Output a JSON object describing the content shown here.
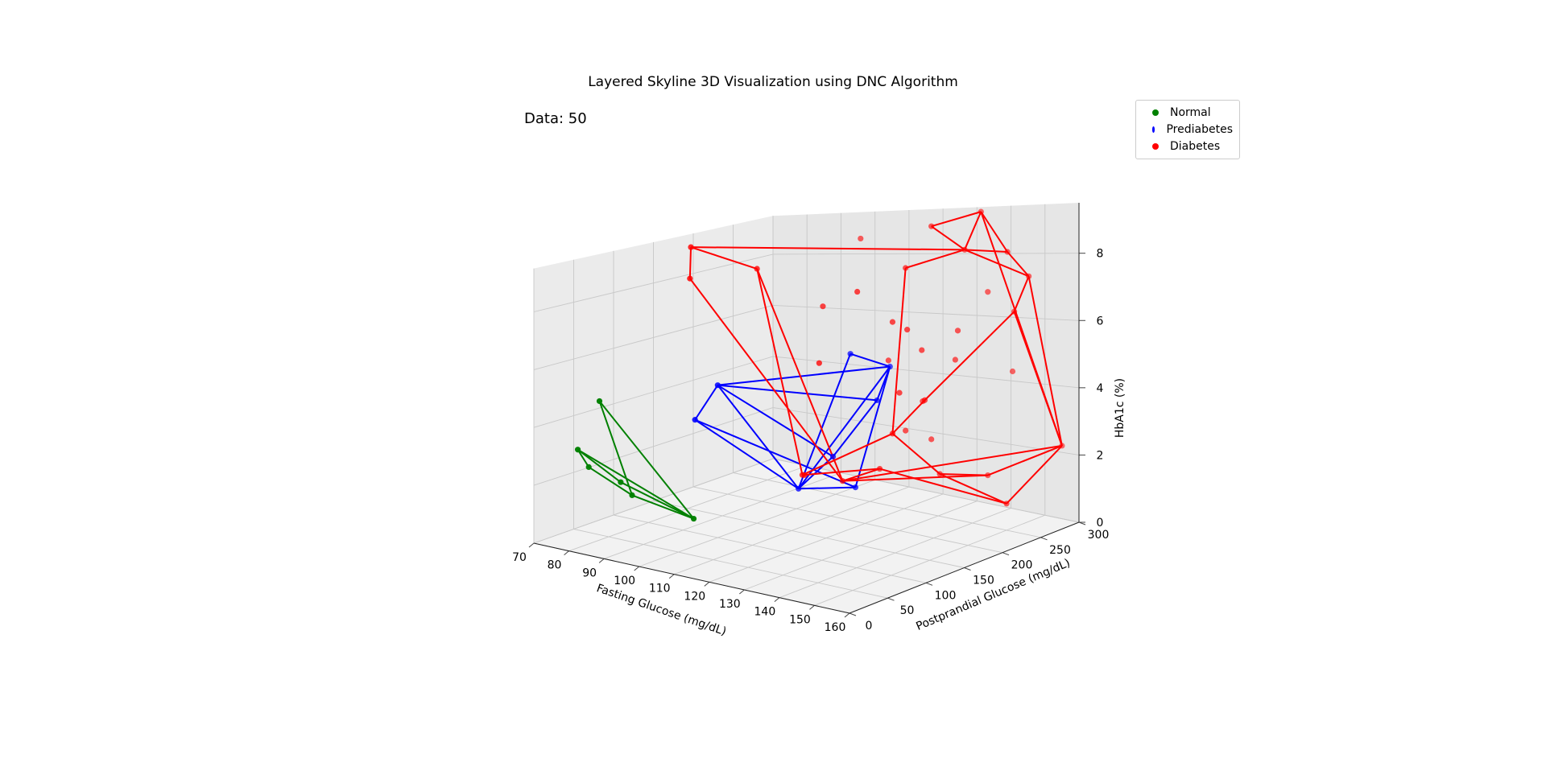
{
  "chart_data": {
    "type": "scatter",
    "title": "Layered Skyline 3D Visualization using DNC Algorithm",
    "annotation": "Data: 50",
    "xlabel": "Fasting Glucose (mg/dL)",
    "ylabel": "Postprandial Glucose (mg/dL)",
    "zlabel": "HbA1c (%)",
    "xlim": [
      70,
      160
    ],
    "ylim": [
      0,
      300
    ],
    "zlim": [
      0,
      9.5
    ],
    "xticks": [
      70,
      80,
      90,
      100,
      110,
      120,
      130,
      140,
      150,
      160
    ],
    "yticks": [
      0,
      50,
      100,
      150,
      200,
      250,
      300
    ],
    "zticks": [
      0,
      2,
      4,
      6,
      8
    ],
    "grid": true,
    "legend_position": "top-right",
    "colors": {
      "Normal": "#008000",
      "Prediabetes": "#0000ff",
      "Diabetes": "#ff0000"
    },
    "series": [
      {
        "name": "Normal",
        "color": "#008000",
        "points": [
          [
            78,
            20,
            3.2
          ],
          [
            80,
            25,
            2.6
          ],
          [
            88,
            30,
            2.2
          ],
          [
            89,
            40,
            1.7
          ],
          [
            86,
            12,
            5.0
          ],
          [
            110,
            25,
            1.5
          ]
        ],
        "skyline_edges": [
          [
            0,
            1
          ],
          [
            0,
            2
          ],
          [
            0,
            5
          ],
          [
            1,
            3
          ],
          [
            2,
            5
          ],
          [
            3,
            5
          ],
          [
            4,
            3
          ],
          [
            4,
            5
          ]
        ]
      },
      {
        "name": "Prediabetes",
        "color": "#0000ff",
        "points": [
          [
            100,
            100,
            5.0
          ],
          [
            98,
            80,
            4.0
          ],
          [
            112,
            150,
            1.4
          ],
          [
            124,
            170,
            1.5
          ],
          [
            118,
            190,
            5.5
          ],
          [
            128,
            180,
            4.2
          ],
          [
            125,
            210,
            5.0
          ],
          [
            122,
            150,
            2.6
          ]
        ],
        "skyline_edges": [
          [
            0,
            1
          ],
          [
            0,
            2
          ],
          [
            0,
            5
          ],
          [
            0,
            6
          ],
          [
            0,
            7
          ],
          [
            1,
            2
          ],
          [
            1,
            3
          ],
          [
            2,
            3
          ],
          [
            2,
            4
          ],
          [
            2,
            6
          ],
          [
            2,
            7
          ],
          [
            3,
            6
          ],
          [
            4,
            6
          ],
          [
            5,
            6
          ],
          [
            5,
            7
          ]
        ]
      },
      {
        "name": "Diabetes",
        "color": "#ff0000",
        "points": [
          [
            90,
            110,
            9.5
          ],
          [
            92,
            100,
            8.5
          ],
          [
            100,
            150,
            8.5
          ],
          [
            118,
            180,
            1.5
          ],
          [
            112,
            155,
            1.8
          ],
          [
            122,
            210,
            1.7
          ],
          [
            125,
            230,
            8.0
          ],
          [
            140,
            240,
            8.5
          ],
          [
            128,
            250,
            9.2
          ],
          [
            138,
            270,
            9.5
          ],
          [
            148,
            260,
            8.3
          ],
          [
            152,
            270,
            7.5
          ],
          [
            150,
            260,
            6.5
          ],
          [
            155,
            300,
            2.2
          ],
          [
            140,
            270,
            1.3
          ],
          [
            150,
            250,
            0.8
          ],
          [
            135,
            230,
            1.6
          ],
          [
            128,
            200,
            3.0
          ],
          [
            134,
            215,
            4.0
          ],
          [
            105,
            260,
            8.8
          ],
          [
            110,
            190,
            7.0
          ],
          [
            120,
            190,
            7.5
          ],
          [
            130,
            210,
            6.2
          ],
          [
            128,
            200,
            6.5
          ],
          [
            132,
            220,
            5.5
          ],
          [
            138,
            240,
            6.0
          ],
          [
            140,
            270,
            7.0
          ],
          [
            145,
            280,
            4.5
          ],
          [
            135,
            250,
            5.0
          ],
          [
            130,
            230,
            3.8
          ],
          [
            125,
            230,
            2.8
          ],
          [
            128,
            250,
            2.4
          ],
          [
            130,
            200,
            4.3
          ],
          [
            120,
            230,
            5.0
          ],
          [
            116,
            140,
            2.0
          ],
          [
            118,
            150,
            5.5
          ]
        ],
        "skyline_edges": [
          [
            0,
            1
          ],
          [
            0,
            2
          ],
          [
            0,
            7
          ],
          [
            1,
            3
          ],
          [
            2,
            3
          ],
          [
            2,
            4
          ],
          [
            3,
            5
          ],
          [
            3,
            13
          ],
          [
            3,
            14
          ],
          [
            4,
            5
          ],
          [
            5,
            15
          ],
          [
            6,
            7
          ],
          [
            6,
            17
          ],
          [
            7,
            8
          ],
          [
            7,
            9
          ],
          [
            7,
            10
          ],
          [
            7,
            11
          ],
          [
            8,
            9
          ],
          [
            9,
            10
          ],
          [
            9,
            13
          ],
          [
            10,
            11
          ],
          [
            11,
            12
          ],
          [
            11,
            13
          ],
          [
            12,
            13
          ],
          [
            12,
            18
          ],
          [
            13,
            14
          ],
          [
            13,
            15
          ],
          [
            14,
            16
          ],
          [
            15,
            16
          ],
          [
            16,
            17
          ],
          [
            17,
            18
          ],
          [
            17,
            4
          ]
        ]
      }
    ]
  }
}
